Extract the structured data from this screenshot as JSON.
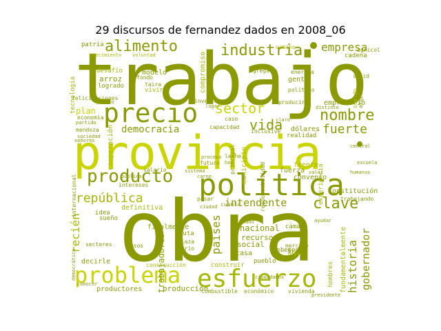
{
  "title": "29 discursos de fernandez dados en 2008_06",
  "colors": {
    "dark": "#8a9a00",
    "mid": "#a7b800",
    "light": "#c9d400",
    "pale": "#d9e066"
  },
  "words": {
    "trabajo": "trabajo",
    "provincia": "provincia",
    "obra": "obra",
    "politica": "política",
    "precio": "precio",
    "esfuerzo": "esfuerzo",
    "problema": "problema",
    "producto": "producto",
    "alimento": "alimento",
    "industria": "industria",
    "sector": "sector",
    "nombre": "nombre",
    "vida": "vida",
    "fuerte": "fuerte",
    "empresa": "empresa",
    "democracia": "democracia",
    "republica": "república",
    "clave": "clave",
    "historia": "historia",
    "intendente": "intendente",
    "gobernador": "gobernador",
    "paises": "países",
    "reciente": "recién",
    "empresario": "empresario",
    "fundamentalmente": "fundamentalmente",
    "nacional": "nacional",
    "recurso": "recurso",
    "social": "social",
    "produccion": "producción",
    "productores": "productores",
    "trabajadores": "trabajadores",
    "definitiva": "definitiva",
    "finalmente": "finalmente",
    "decirle": "decirle",
    "plan": "plan",
    "arroz": "arroz",
    "modelo": "modelo",
    "desafio": "desafío",
    "gente": "gente",
    "sueno": "sueño",
    "idea": "idea",
    "patria": "patria",
    "compromiso": "compromiso",
    "camino": "camino",
    "cadena": "cadena",
    "agricola": "agricola",
    "dolares": "dólares",
    "realidad": "realidad",
    "debemos": "debemos",
    "pueblo": "pueblo",
    "casa": "casa",
    "camara": "cámara",
    "frente": "frente",
    "fuerza": "fuerza",
    "convenio": "convenio",
    "constitucion": "constitución",
    "trabajando": "trabajando",
    "construccion": "construcción",
    "construir": "construir",
    "vivienda": "vivienda",
    "economico": "económico",
    "combustible": "combustible",
    "intereses": "intereses",
    "sectores": "sectores",
    "ruta": "ruta",
    "plaza": "plaza",
    "serio": "serio",
    "mercado": "mercado",
    "brasil": "brasil",
    "energia": "energía",
    "politico": "político",
    "producir": "producir",
    "tema": "tema",
    "cooperacion": "cooperación",
    "salario": "salario",
    "capacidad": "capacidad",
    "caso": "caso",
    "inclusive": "inclusive",
    "economia": "economía",
    "mendoza": "mendoza",
    "sociedad": "sociedad",
    "logrado": "logrado",
    "vivir": "vivir",
    "leche": "leche",
    "municipio": "municipio",
    "cuenta": "cuenta",
    "pasar": "pasar",
    "ciudad": "ciudad",
    "futuro": "futuro",
    "proceso": "proceso",
    "sistema": "sistema",
    "carne": "carne",
    "tecnologia": "tecnologia",
    "felicitaciones": "felicitaciones",
    "hombres": "hombres",
    "mayo": "mayo",
    "agregado": "agregado",
    "solid": "solid",
    "crecimiento": "crecimiento",
    "voluntad": "voluntad",
    "fondo": "fondo",
    "taira": "taira",
    "inversiones": "inversiones",
    "distinto": "distinto",
    "sueldo": "sueldo",
    "partido": "partido",
    "pasado": "pasado",
    "principal": "principal",
    "responsabilidad": "responsabilidad",
    "ciudadanos": "ciudadanos",
    "experiencia": "experiencia",
    "internacional": "internacional",
    "democratico": "democrático",
    "conocer": "conocer",
    "presidente": "presidente",
    "ayudar": "ayudar",
    "central": "central",
    "publica": "pública",
    "humanos": "humanos",
    "argentino": "argentino",
    "escuela": "escuela",
    "senores": "señores",
    "pesos": "pesos",
    "hoy": "hoy",
    "lugar": "lugar",
    "mano": "mano",
    "valor": "valor",
    "claro": "claro"
  }
}
